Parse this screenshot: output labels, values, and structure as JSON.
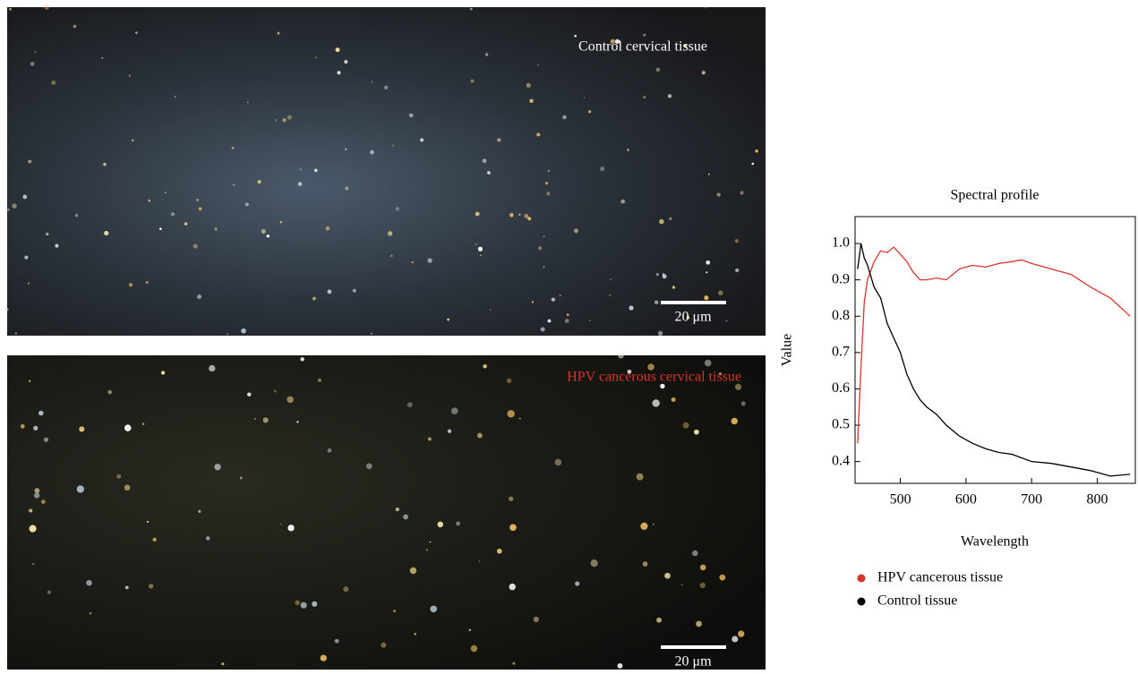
{
  "panels": [
    {
      "label": "Control cervical tissue",
      "scale_bar": "20 μm"
    },
    {
      "label": "HPV cancerous cervical tissue",
      "scale_bar": "20 μm"
    }
  ],
  "chart_data": {
    "type": "line",
    "title": "Spectral profile",
    "x_label": "Wavelength",
    "y_label": "Value",
    "x": [
      435,
      440,
      445,
      450,
      460,
      470,
      480,
      490,
      500,
      510,
      520,
      530,
      540,
      555,
      570,
      590,
      610,
      630,
      650,
      670,
      685,
      700,
      730,
      760,
      790,
      820,
      850
    ],
    "series": [
      {
        "name": "HPV cancerous tissue",
        "color": "#d9342b",
        "values": [
          0.45,
          0.66,
          0.84,
          0.9,
          0.95,
          0.98,
          0.975,
          0.99,
          0.97,
          0.95,
          0.92,
          0.9,
          0.9,
          0.905,
          0.9,
          0.93,
          0.94,
          0.935,
          0.945,
          0.95,
          0.955,
          0.945,
          0.93,
          0.915,
          0.88,
          0.85,
          0.8
        ]
      },
      {
        "name": "Control tissue",
        "color": "#000000",
        "values": [
          0.93,
          1.0,
          0.96,
          0.94,
          0.88,
          0.85,
          0.78,
          0.74,
          0.7,
          0.64,
          0.6,
          0.57,
          0.55,
          0.53,
          0.5,
          0.47,
          0.45,
          0.435,
          0.425,
          0.42,
          0.41,
          0.4,
          0.395,
          0.385,
          0.375,
          0.36,
          0.365
        ]
      }
    ],
    "xlim": [
      431,
      858
    ],
    "ylim": [
      0.34,
      1.074
    ],
    "xticks": [
      500,
      600,
      700,
      800
    ],
    "yticks": [
      0.4,
      0.5,
      0.6,
      0.7,
      0.8,
      0.9,
      {
        "value": 1,
        "label": "1.0"
      }
    ],
    "grid": false
  }
}
